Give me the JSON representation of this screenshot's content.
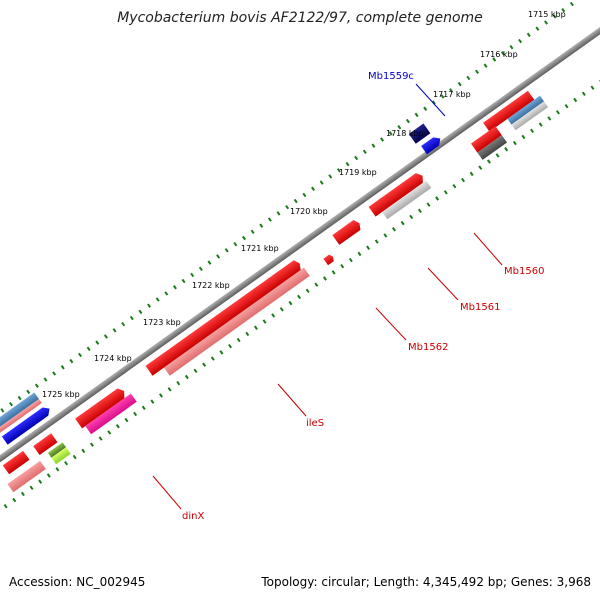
{
  "title": "Mycobacterium bovis AF2122/97, complete genome",
  "footer": {
    "accession": "Accession: NC_002945",
    "summary": "Topology: circular; Length: 4,345,492 bp; Genes: 3,968"
  },
  "tick_labels": [
    "1715 kbp",
    "1716 kbp",
    "1717 kbp",
    "1718 kbp",
    "1719 kbp",
    "1720 kbp",
    "1721 kbp",
    "1722 kbp",
    "1723 kbp",
    "1724 kbp",
    "1725 kbp"
  ],
  "gene_labels": {
    "mb1559c": "Mb1559c",
    "mb1560": "Mb1560",
    "mb1561": "Mb1561",
    "mb1562": "Mb1562",
    "iles": "ileS",
    "dinx": "dinX"
  },
  "colors": {
    "backbone": "#808080",
    "tick": "#1a7a1a",
    "forward_gene": "#ff0000",
    "reverse_gene": "#0000cc",
    "label_red": "#cc0000",
    "label_blue": "#0000cc"
  }
}
